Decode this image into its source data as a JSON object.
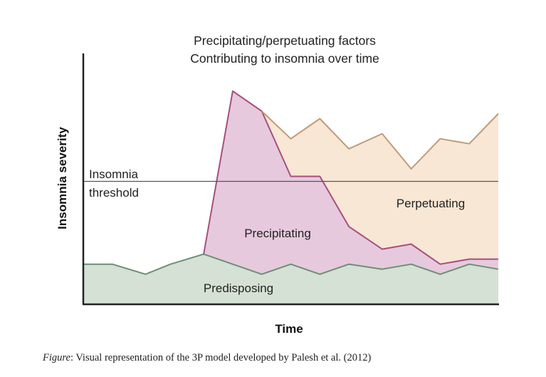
{
  "chart_data": {
    "type": "area",
    "stacked": true,
    "title_lines": [
      "Precipitating/perpetuating factors",
      "Contributing to insomnia over time"
    ],
    "xlabel": "Time",
    "ylabel": "Insomnia severity",
    "xlim": [
      0,
      100
    ],
    "ylim": [
      0,
      100
    ],
    "grid": false,
    "threshold": {
      "label_lines": [
        "Insomnia",
        "threshold"
      ],
      "value": 49
    },
    "series": [
      {
        "name": "Predisposing",
        "color_fill": "#d4e1d4",
        "color_line": "#6d8f78",
        "points": [
          [
            0,
            16
          ],
          [
            7,
            16
          ],
          [
            15,
            12
          ],
          [
            21,
            16
          ],
          [
            29,
            20
          ],
          [
            43,
            12
          ],
          [
            50,
            16
          ],
          [
            57,
            12
          ],
          [
            64,
            16
          ],
          [
            72,
            14
          ],
          [
            79,
            16
          ],
          [
            86,
            12
          ],
          [
            93,
            16
          ],
          [
            100,
            14
          ]
        ]
      },
      {
        "name": "Precipitating",
        "color_fill": "#e7c9dd",
        "color_line": "#a4507f",
        "points": [
          [
            29,
            20
          ],
          [
            36,
            85
          ],
          [
            43,
            77
          ],
          [
            50,
            51
          ],
          [
            57,
            51
          ],
          [
            64,
            31
          ],
          [
            72,
            22
          ],
          [
            79,
            24
          ],
          [
            86,
            16
          ],
          [
            93,
            18
          ],
          [
            100,
            18
          ]
        ]
      },
      {
        "name": "Perpetuating",
        "color_fill": "#f8e7d4",
        "color_line": "#c39a78",
        "points": [
          [
            43,
            77
          ],
          [
            50,
            66
          ],
          [
            57,
            74
          ],
          [
            64,
            62
          ],
          [
            72,
            68
          ],
          [
            79,
            54
          ],
          [
            86,
            66
          ],
          [
            93,
            64
          ],
          [
            100,
            76
          ]
        ]
      }
    ]
  },
  "caption": {
    "italic": "Figure",
    "text": ": Visual representation of the 3P model developed by Palesh et al. (2012)"
  }
}
